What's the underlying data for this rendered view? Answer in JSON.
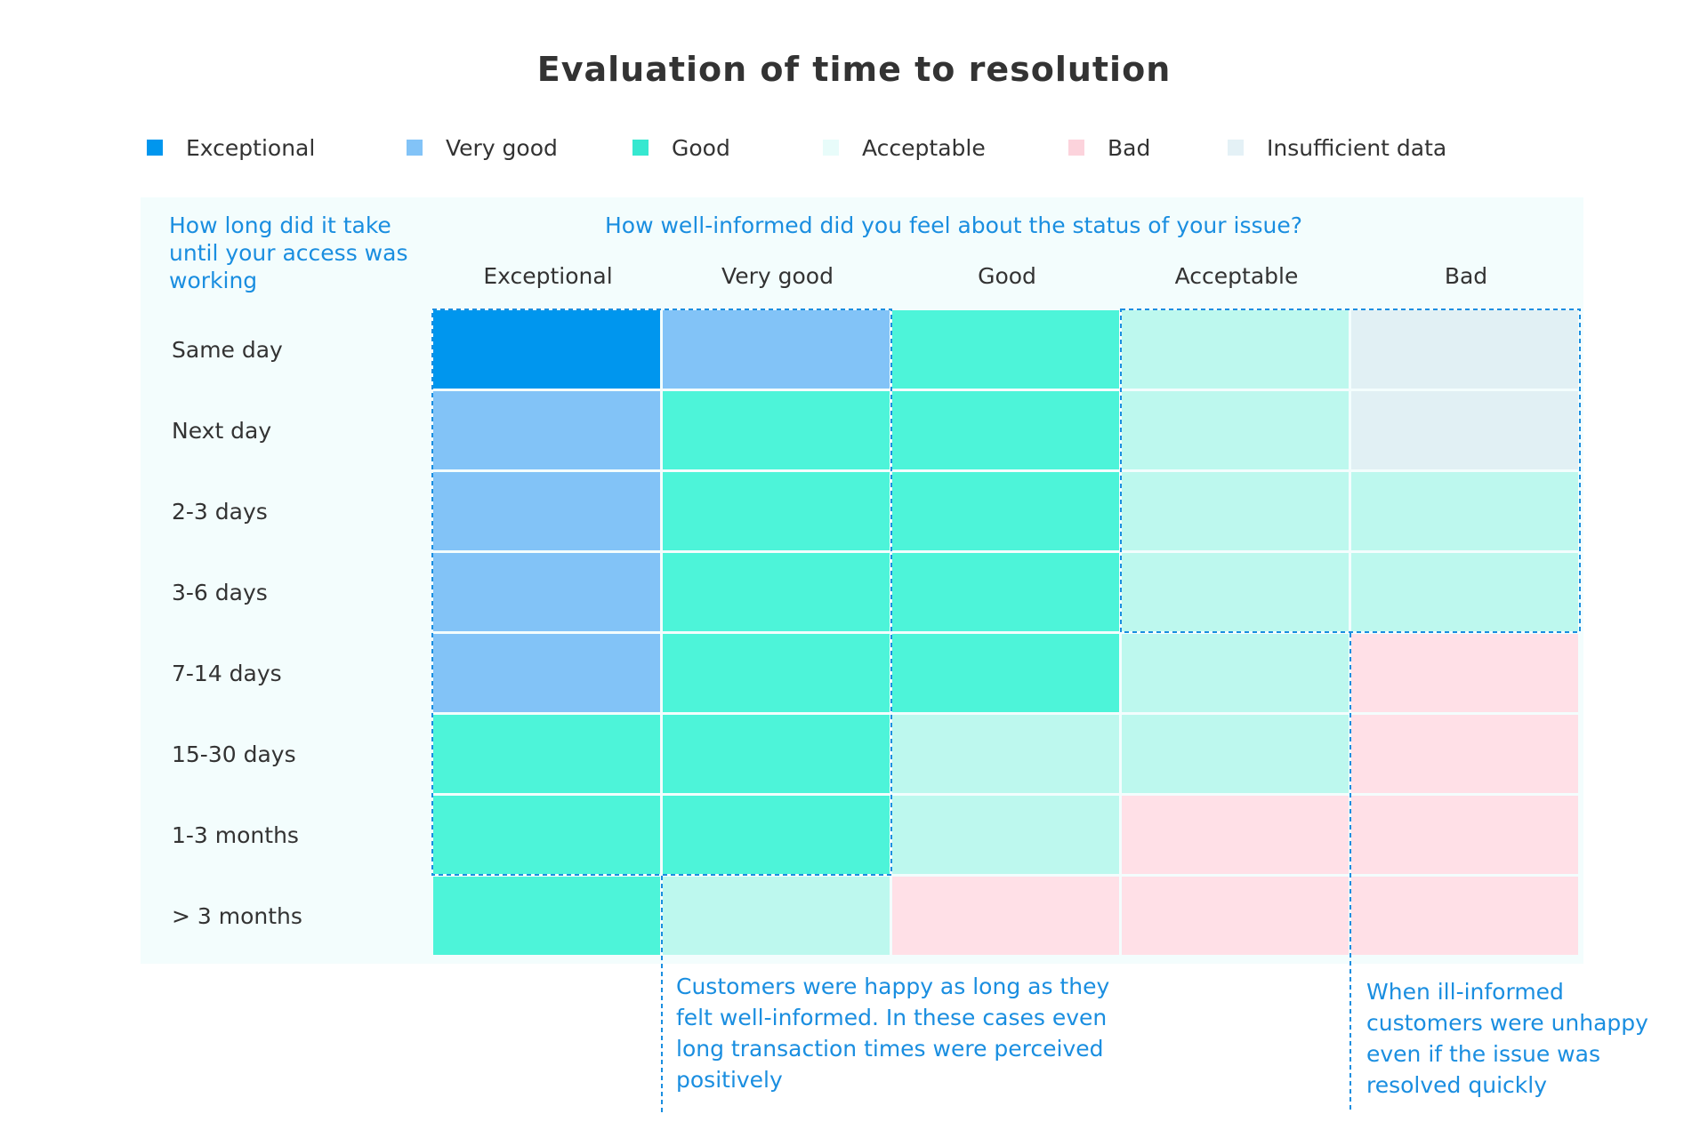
{
  "colors": {
    "exceptional": "#0096ee",
    "very_good": "#82c3f7",
    "good": "#4df4d9",
    "acceptable": "#bdf8ee",
    "bad": "#ffe0e7",
    "insufficient": "#e1f0f4",
    "annotation": "#1a8ee0"
  },
  "chart_data": {
    "type": "heatmap",
    "title": "Evaluation of time to resolution",
    "row_axis_label": "How long did it take until your access was working",
    "col_axis_label": "How well-informed did you feel about the status of your issue?",
    "legend": [
      {
        "key": "exceptional",
        "label": "Exceptional",
        "swatch": "#0096ee"
      },
      {
        "key": "very_good",
        "label": "Very good",
        "swatch": "#82c3f7"
      },
      {
        "key": "good",
        "label": "Good",
        "swatch": "#36e8d0"
      },
      {
        "key": "acceptable",
        "label": "Acceptable",
        "swatch": "#e8fcfa"
      },
      {
        "key": "bad",
        "label": "Bad",
        "swatch": "#fcd3dc"
      },
      {
        "key": "insufficient",
        "label": "Insufficient data",
        "swatch": "#e4f1f6"
      }
    ],
    "columns": [
      "Exceptional",
      "Very good",
      "Good",
      "Acceptable",
      "Bad"
    ],
    "rows": [
      "Same day",
      "Next day",
      "2-3 days",
      "3-6 days",
      "7-14 days",
      "15-30 days",
      "1-3 months",
      "> 3 months"
    ],
    "cells": [
      [
        "exceptional",
        "very_good",
        "good",
        "acceptable",
        "insufficient"
      ],
      [
        "very_good",
        "good",
        "good",
        "acceptable",
        "insufficient"
      ],
      [
        "very_good",
        "good",
        "good",
        "acceptable",
        "acceptable"
      ],
      [
        "very_good",
        "good",
        "good",
        "acceptable",
        "acceptable"
      ],
      [
        "very_good",
        "good",
        "good",
        "acceptable",
        "bad"
      ],
      [
        "good",
        "good",
        "acceptable",
        "acceptable",
        "bad"
      ],
      [
        "good",
        "good",
        "acceptable",
        "bad",
        "bad"
      ],
      [
        "good",
        "acceptable",
        "bad",
        "bad",
        "bad"
      ]
    ],
    "annotations": [
      {
        "text": "Customers were happy as long as they felt well-informed. In these cases even long transaction times were perceived positively"
      },
      {
        "text": "When ill-informed customers were unhappy even if the issue was resolved quickly"
      }
    ]
  }
}
